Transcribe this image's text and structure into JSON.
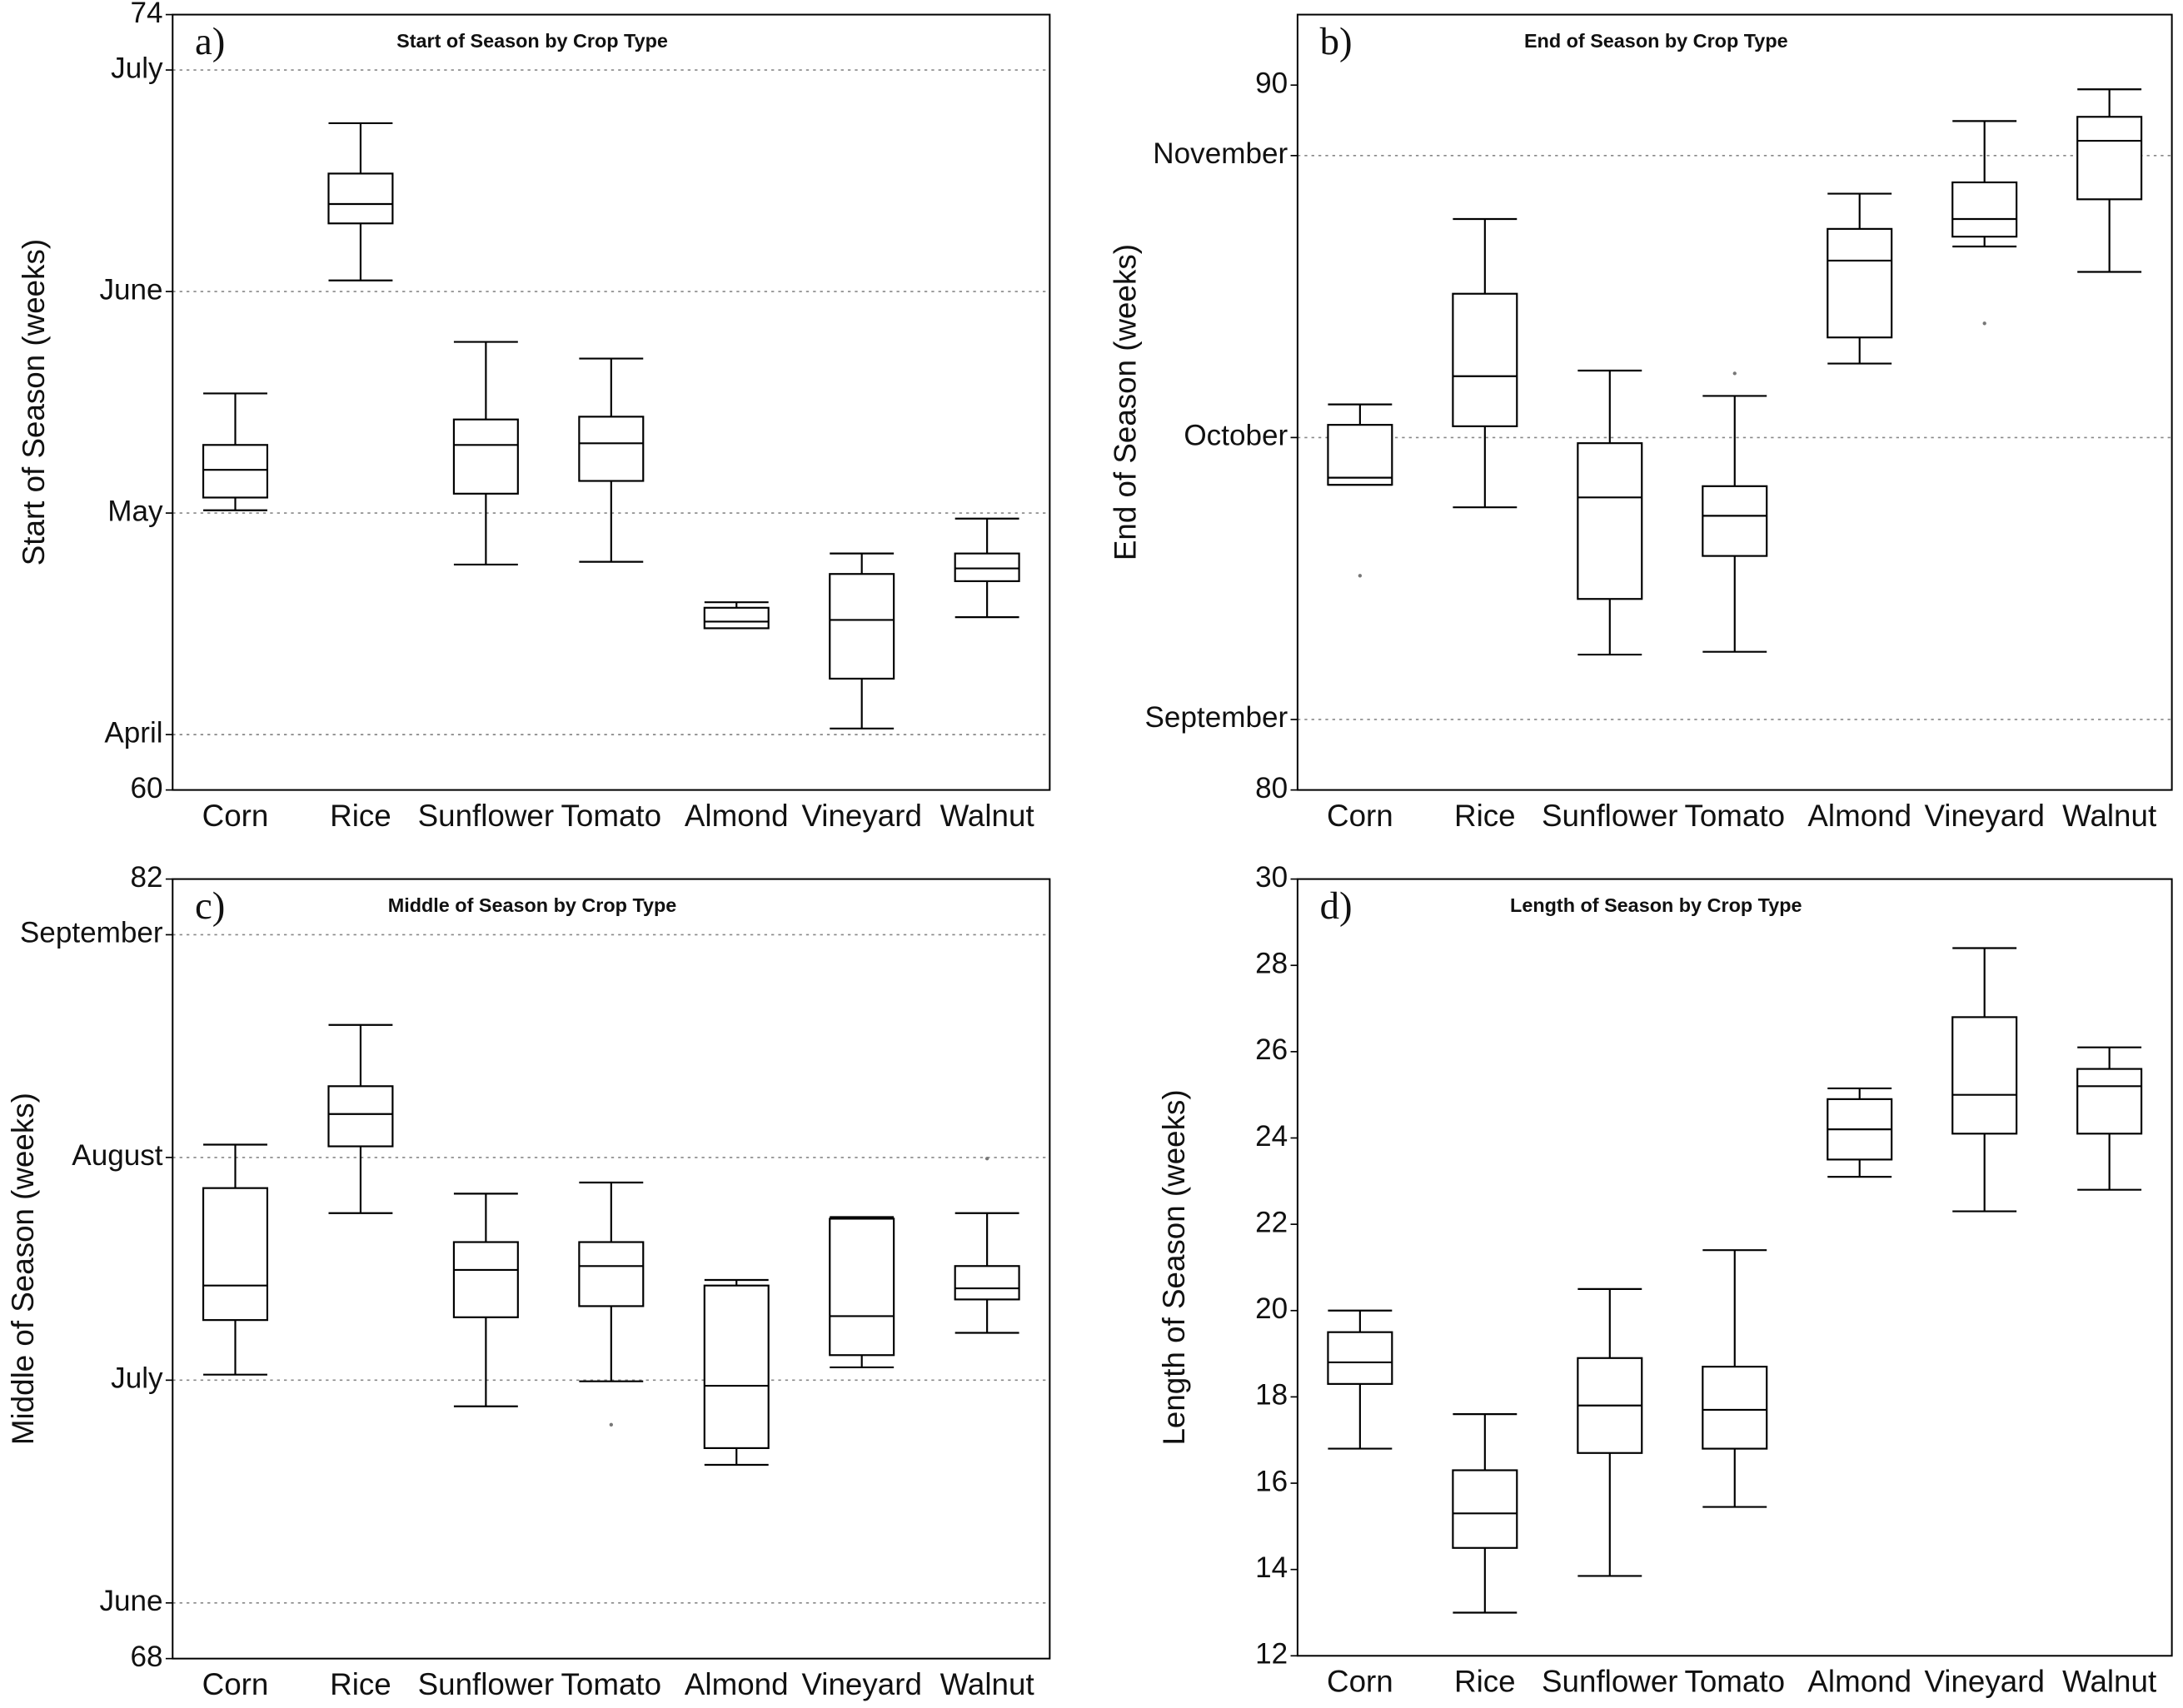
{
  "chart_data": [
    {
      "type": "box",
      "panel_label": "a)",
      "title": "Start of Season by Crop Type",
      "ylabel": "Start of Season (weeks)",
      "color": "#000000",
      "grid": true,
      "categories": [
        "Corn",
        "Rice",
        "Sunflower",
        "Tomato",
        "Almond",
        "Vineyard",
        "Walnut"
      ],
      "boxes": [
        {
          "whisker_low": 65.05,
          "q1": 65.28,
          "median": 65.78,
          "q3": 66.23,
          "whisker_high": 67.16
        },
        {
          "whisker_low": 69.2,
          "q1": 70.23,
          "median": 70.58,
          "q3": 71.13,
          "whisker_high": 72.04
        },
        {
          "whisker_low": 64.07,
          "q1": 65.35,
          "median": 66.23,
          "q3": 66.69,
          "whisker_high": 68.09
        },
        {
          "whisker_low": 64.12,
          "q1": 65.58,
          "median": 66.26,
          "q3": 66.74,
          "whisker_high": 67.79
        },
        {
          "whisker_low": 62.92,
          "q1": 62.92,
          "median": 63.04,
          "q3": 63.29,
          "whisker_high": 63.39
        },
        {
          "whisker_low": 61.11,
          "q1": 62.01,
          "median": 63.07,
          "q3": 63.9,
          "whisker_high": 64.27
        },
        {
          "whisker_low": 63.12,
          "q1": 63.77,
          "median": 64.0,
          "q3": 64.27,
          "whisker_high": 64.9
        }
      ],
      "ylim": [
        60,
        74
      ],
      "yticks": [
        60,
        {
          "value": 61,
          "label": "April"
        },
        {
          "value": 65,
          "label": "May"
        },
        {
          "value": 69,
          "label": "June"
        },
        {
          "value": 73,
          "label": "July"
        },
        74
      ]
    },
    {
      "type": "box",
      "panel_label": "b)",
      "title": "End of Season by Crop Type",
      "ylabel": "End of Season (weeks)",
      "color": "#000000",
      "grid": true,
      "categories": [
        "Corn",
        "Rice",
        "Sunflower",
        "Tomato",
        "Almond",
        "Vineyard",
        "Walnut"
      ],
      "boxes": [
        {
          "whisker_low": 84.33,
          "q1": 84.33,
          "median": 84.43,
          "q3": 85.18,
          "whisker_high": 85.47,
          "outliers": [
            83.04
          ]
        },
        {
          "whisker_low": 84.01,
          "q1": 85.16,
          "median": 85.87,
          "q3": 87.04,
          "whisker_high": 88.1
        },
        {
          "whisker_low": 81.92,
          "q1": 82.71,
          "median": 84.15,
          "q3": 84.92,
          "whisker_high": 85.95
        },
        {
          "whisker_low": 81.96,
          "q1": 83.32,
          "median": 83.89,
          "q3": 84.31,
          "whisker_high": 85.59,
          "outliers": [
            85.91
          ]
        },
        {
          "whisker_low": 86.05,
          "q1": 86.42,
          "median": 87.51,
          "q3": 87.96,
          "whisker_high": 88.46
        },
        {
          "whisker_low": 87.71,
          "q1": 87.85,
          "median": 88.1,
          "q3": 88.62,
          "whisker_high": 89.49,
          "outliers": [
            86.62
          ]
        },
        {
          "whisker_low": 87.35,
          "q1": 88.38,
          "median": 89.21,
          "q3": 89.55,
          "whisker_high": 89.94
        }
      ],
      "ylim": [
        80,
        91
      ],
      "yticks": [
        80,
        {
          "value": 81,
          "label": "September"
        },
        {
          "value": 85,
          "label": "October"
        },
        {
          "value": 89,
          "label": "November"
        },
        90
      ]
    },
    {
      "type": "box",
      "panel_label": "c)",
      "title": "Middle of Season by Crop Type",
      "ylabel": "Middle of Season (weeks)",
      "color": "#000000",
      "grid": true,
      "categories": [
        "Corn",
        "Rice",
        "Sunflower",
        "Tomato",
        "Almond",
        "Vineyard",
        "Walnut"
      ],
      "boxes": [
        {
          "whisker_low": 73.1,
          "q1": 74.08,
          "median": 74.7,
          "q3": 76.45,
          "whisker_high": 77.23
        },
        {
          "whisker_low": 76.0,
          "q1": 77.2,
          "median": 77.78,
          "q3": 78.28,
          "whisker_high": 79.38
        },
        {
          "whisker_low": 72.53,
          "q1": 74.13,
          "median": 74.98,
          "q3": 75.48,
          "whisker_high": 76.35
        },
        {
          "whisker_low": 72.98,
          "q1": 74.33,
          "median": 75.05,
          "q3": 75.48,
          "whisker_high": 76.55,
          "outliers": [
            72.2
          ]
        },
        {
          "whisker_low": 71.48,
          "q1": 71.78,
          "median": 72.9,
          "q3": 74.7,
          "whisker_high": 74.8
        },
        {
          "whisker_low": 73.23,
          "q1": 73.45,
          "median": 74.15,
          "q3": 75.9,
          "whisker_high": 75.93
        },
        {
          "whisker_low": 73.85,
          "q1": 74.45,
          "median": 74.65,
          "q3": 75.05,
          "whisker_high": 76.0,
          "outliers": [
            76.98
          ]
        }
      ],
      "ylim": [
        68,
        82
      ],
      "yticks": [
        68,
        {
          "value": 69,
          "label": "June"
        },
        {
          "value": 73,
          "label": "July"
        },
        {
          "value": 77,
          "label": "August"
        },
        {
          "value": 81,
          "label": "September"
        },
        82
      ]
    },
    {
      "type": "box",
      "panel_label": "d)",
      "title": "Length of Season by Crop Type",
      "ylabel": "Length of Season (weeks)",
      "color": "#000000",
      "grid": false,
      "categories": [
        "Corn",
        "Rice",
        "Sunflower",
        "Tomato",
        "Almond",
        "Vineyard",
        "Walnut"
      ],
      "boxes": [
        {
          "whisker_low": 16.8,
          "q1": 18.3,
          "median": 18.8,
          "q3": 19.5,
          "whisker_high": 20.0
        },
        {
          "whisker_low": 13.0,
          "q1": 14.5,
          "median": 15.3,
          "q3": 16.3,
          "whisker_high": 17.6
        },
        {
          "whisker_low": 13.85,
          "q1": 16.7,
          "median": 17.8,
          "q3": 18.9,
          "whisker_high": 20.5
        },
        {
          "whisker_low": 15.45,
          "q1": 16.8,
          "median": 17.7,
          "q3": 18.7,
          "whisker_high": 21.4
        },
        {
          "whisker_low": 23.1,
          "q1": 23.5,
          "median": 24.2,
          "q3": 24.9,
          "whisker_high": 25.15
        },
        {
          "whisker_low": 22.3,
          "q1": 24.1,
          "median": 25.0,
          "q3": 26.8,
          "whisker_high": 28.4
        },
        {
          "whisker_low": 22.8,
          "q1": 24.1,
          "median": 25.2,
          "q3": 25.6,
          "whisker_high": 26.1
        }
      ],
      "ylim": [
        12,
        30
      ],
      "yticks": [
        12,
        14,
        16,
        18,
        20,
        22,
        24,
        26,
        28,
        30
      ]
    }
  ]
}
